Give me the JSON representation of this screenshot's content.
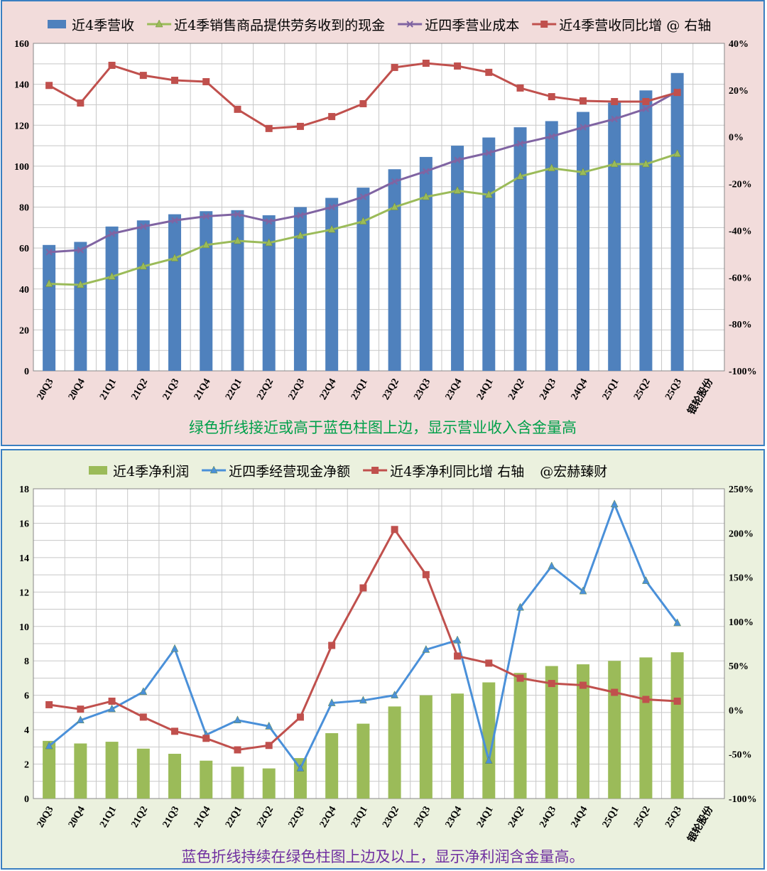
{
  "chart_data": [
    {
      "type": "bar+line",
      "categories": [
        "20Q3",
        "20Q4",
        "21Q1",
        "21Q2",
        "21Q3",
        "21Q4",
        "22Q1",
        "22Q2",
        "22Q3",
        "22Q4",
        "23Q1",
        "23Q2",
        "23Q3",
        "23Q4",
        "24Q1",
        "24Q2",
        "24Q3",
        "24Q4",
        "25Q1",
        "25Q2",
        "25Q3"
      ],
      "extra_label": "银轮股份",
      "ylim": [
        0,
        160
      ],
      "yticks": [
        0,
        20,
        40,
        60,
        80,
        100,
        120,
        140,
        160
      ],
      "y2lim": [
        -100,
        40
      ],
      "y2ticks": [
        "-100%",
        "-80%",
        "-60%",
        "-40%",
        "-20%",
        "0%",
        "20%",
        "40%"
      ],
      "grid": true,
      "legend": "top",
      "series": [
        {
          "name": "近4季营收",
          "kind": "bar",
          "axis": "left",
          "color": "#4f81bd",
          "values": [
            61.5,
            63,
            70.5,
            73.5,
            76.5,
            78,
            78.5,
            76,
            80,
            84.5,
            89.5,
            98.5,
            104.5,
            110,
            114,
            119,
            122,
            126.5,
            131,
            137,
            145.5
          ]
        },
        {
          "name": "近4季销售商品提供劳务收到的现金",
          "kind": "line",
          "marker": "triangle",
          "axis": "left",
          "color": "#9bbb59",
          "values": [
            42.5,
            42,
            46,
            51,
            55,
            61.5,
            63.5,
            62.5,
            66,
            69,
            73,
            80,
            85,
            88,
            86,
            95,
            99,
            97,
            101,
            101,
            106
          ]
        },
        {
          "name": "近四季营业成本",
          "kind": "line",
          "marker": "x",
          "axis": "left",
          "color": "#8064a2",
          "values": [
            58,
            59,
            67,
            70.5,
            73.5,
            75.5,
            76.5,
            73,
            76,
            80,
            85,
            92.5,
            97.5,
            103,
            106.5,
            111,
            114.5,
            119,
            123,
            128,
            136.5
          ]
        },
        {
          "name": "近4季营收同比增 @ 右轴",
          "kind": "line",
          "marker": "square",
          "axis": "right",
          "color": "#c0504d",
          "values": [
            22,
            14.5,
            30.6,
            26.3,
            24.2,
            23.6,
            11.8,
            3.6,
            4.5,
            8.7,
            14.2,
            29.7,
            31.5,
            30.3,
            27.6,
            20.9,
            17.2,
            15.4,
            15.1,
            15.1,
            19
          ]
        }
      ],
      "annotation": "绿色折线接近或高于蓝色柱图上边，显示营业收入含金量高",
      "annotation_color": "#00a04a"
    },
    {
      "type": "bar+line",
      "categories": [
        "20Q3",
        "20Q4",
        "21Q1",
        "21Q2",
        "21Q3",
        "21Q4",
        "22Q1",
        "22Q2",
        "22Q3",
        "22Q4",
        "23Q1",
        "23Q2",
        "23Q3",
        "23Q4",
        "24Q1",
        "24Q2",
        "24Q3",
        "24Q4",
        "25Q1",
        "25Q2",
        "25Q3"
      ],
      "extra_label": "银轮股份",
      "ylim": [
        0,
        18
      ],
      "yticks": [
        0,
        2,
        4,
        6,
        8,
        10,
        12,
        14,
        16,
        18
      ],
      "y2lim": [
        -100,
        250
      ],
      "y2ticks": [
        "-100%",
        "-50%",
        "0%",
        "50%",
        "100%",
        "150%",
        "200%",
        "250%"
      ],
      "grid": true,
      "legend": "top",
      "series": [
        {
          "name": "近4季净利润",
          "kind": "bar",
          "axis": "left",
          "color": "#9bbb59",
          "values": [
            3.35,
            3.2,
            3.3,
            2.9,
            2.6,
            2.2,
            1.85,
            1.75,
            2.35,
            3.8,
            4.35,
            5.35,
            6.0,
            6.1,
            6.75,
            7.3,
            7.7,
            7.8,
            8.0,
            8.2,
            8.5
          ]
        },
        {
          "name": "近四季经营现金净额",
          "kind": "line",
          "marker": "triangle",
          "axis": "left",
          "color": "#4a90d9",
          "values": [
            3.05,
            4.55,
            5.2,
            6.2,
            8.7,
            3.7,
            4.55,
            4.2,
            1.75,
            5.55,
            5.7,
            6.0,
            8.65,
            9.2,
            2.2,
            11.1,
            13.5,
            12.05,
            17.1,
            12.65,
            10.2
          ]
        },
        {
          "name": "近4季净利同比增 右轴",
          "kind": "line",
          "marker": "square",
          "axis": "right",
          "color": "#c0504d",
          "values": [
            6,
            1,
            10,
            -8,
            -24,
            -32,
            -45,
            -40,
            -8,
            73,
            138,
            204,
            153,
            61,
            53,
            36,
            30,
            28,
            20,
            12,
            10
          ]
        }
      ],
      "legend_extra": "@宏赫臻财",
      "annotation": "蓝色折线持续在绿色柱图上边及以上，显示净利润含金量高。",
      "annotation_color": "#7030a0"
    }
  ]
}
